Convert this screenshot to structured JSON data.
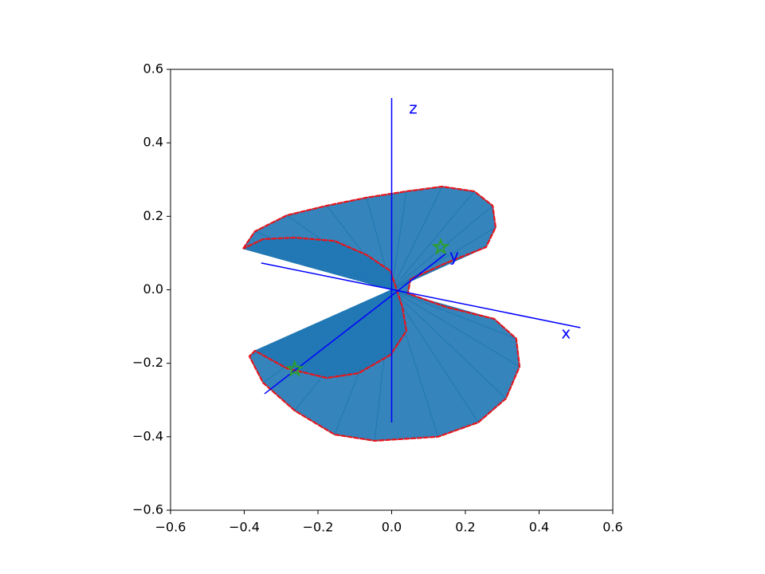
{
  "chart_data": {
    "type": "fan",
    "x": [
      -0.403,
      -0.371,
      -0.284,
      -0.176,
      -0.068,
      0.04,
      0.137,
      0.224,
      0.274,
      0.282,
      0.256,
      0.148,
      0.051,
      0.044,
      0.148,
      0.278,
      0.338,
      0.347,
      0.31,
      0.235,
      0.126,
      -0.046,
      -0.155,
      -0.263,
      -0.349,
      -0.386,
      -0.371,
      -0.284,
      -0.176,
      -0.09,
      -0.003,
      0.04,
      0.029,
      -0.003,
      -0.068,
      -0.155,
      -0.263,
      -0.349,
      -0.403
    ],
    "y": [
      0.112,
      0.159,
      0.203,
      0.229,
      0.251,
      0.268,
      0.281,
      0.268,
      0.229,
      0.17,
      0.116,
      0.073,
      0.029,
      -0.01,
      -0.047,
      -0.079,
      -0.133,
      -0.209,
      -0.296,
      -0.361,
      -0.4,
      -0.411,
      -0.394,
      -0.329,
      -0.253,
      -0.181,
      -0.166,
      -0.214,
      -0.24,
      -0.227,
      -0.177,
      -0.112,
      -0.047,
      0.051,
      0.095,
      0.133,
      0.142,
      0.138,
      0.112
    ],
    "curve_color": "#e8141a",
    "fan_color": "#1f77b4",
    "axes": [
      {
        "label": "x",
        "x": [
          -0.354,
          0.512
        ],
        "y": [
          0.073,
          -0.103
        ]
      },
      {
        "label": "y",
        "x": [
          -0.345,
          0.148
        ],
        "y": [
          -0.283,
          0.099
        ]
      },
      {
        "label": "z",
        "x": [
          0,
          0
        ],
        "y": [
          -0.361,
          0.522
        ]
      }
    ],
    "axes_color": "#0000ff",
    "markers": {
      "x": [
        -0.263,
        0.133
      ],
      "y": [
        -0.216,
        0.116
      ],
      "color": "#2ca02c"
    },
    "xlim": [
      -0.6,
      0.6
    ],
    "ylim": [
      -0.6,
      0.6
    ],
    "xticks": [
      {
        "value": -0.6,
        "label": "−0.6"
      },
      {
        "value": -0.4,
        "label": "−0.4"
      },
      {
        "value": -0.2,
        "label": "−0.2"
      },
      {
        "value": 0.0,
        "label": "0.0"
      },
      {
        "value": 0.2,
        "label": "0.2"
      },
      {
        "value": 0.4,
        "label": "0.4"
      },
      {
        "value": 0.6,
        "label": "0.6"
      }
    ],
    "yticks": [
      {
        "value": -0.6,
        "label": "−0.6"
      },
      {
        "value": -0.4,
        "label": "−0.4"
      },
      {
        "value": -0.2,
        "label": "−0.2"
      },
      {
        "value": 0.0,
        "label": "0.0"
      },
      {
        "value": 0.2,
        "label": "0.2"
      },
      {
        "value": 0.4,
        "label": "0.4"
      },
      {
        "value": 0.6,
        "label": "0.6"
      }
    ]
  }
}
